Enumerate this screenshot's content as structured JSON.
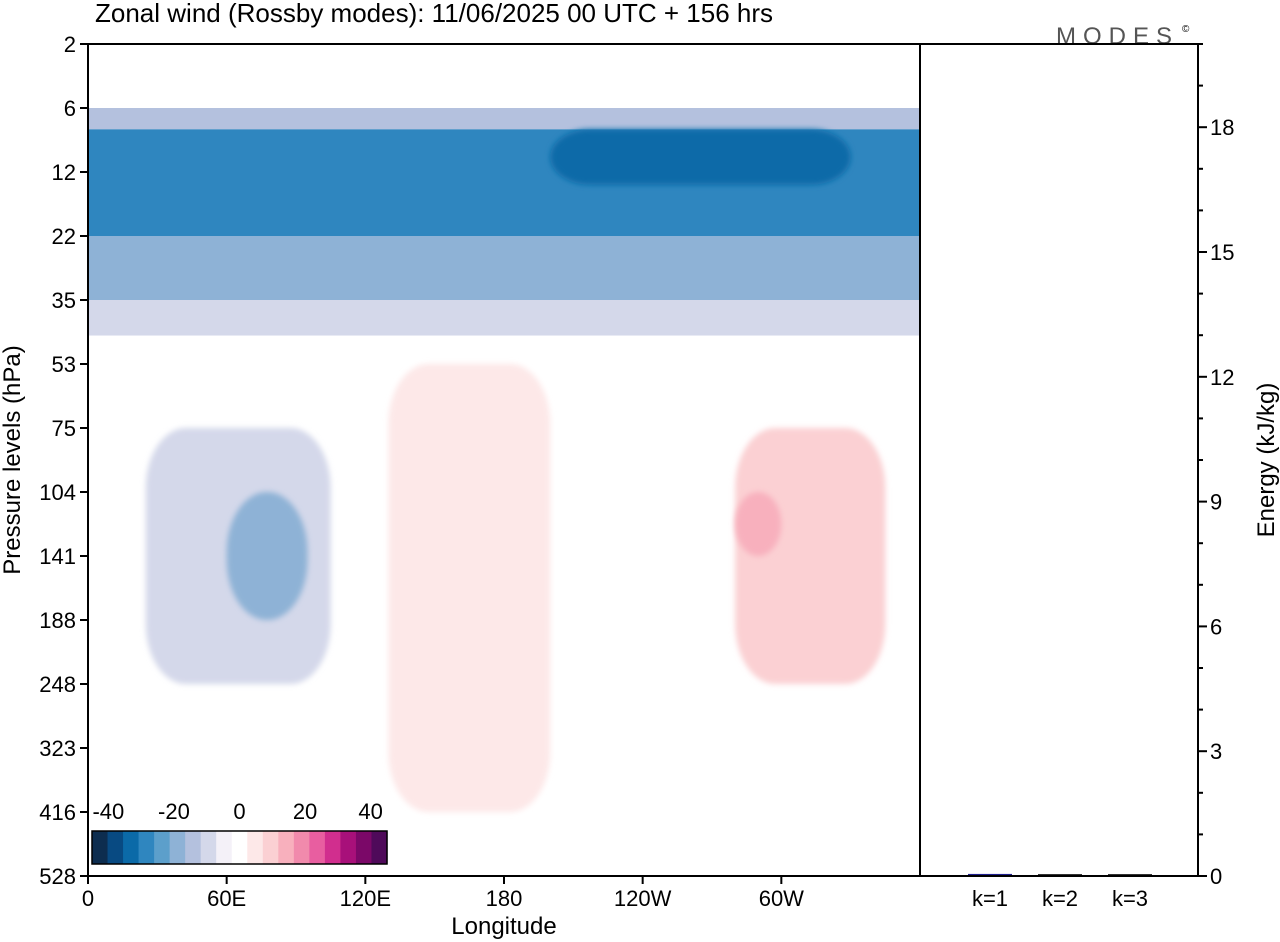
{
  "title": "Zonal wind (Rossby modes):  11/06/2025  00 UTC  + 156 hrs",
  "logo": {
    "text": "MODES",
    "mark": "©"
  },
  "chart_data": [
    {
      "type": "heatmap",
      "title": "Zonal wind (Rossby modes):  11/06/2025  00 UTC  + 156 hrs",
      "xlabel": "Longitude",
      "ylabel": "Pressure levels (hPa)",
      "x_ticks": [
        "0",
        "60E",
        "120E",
        "180",
        "120W",
        "60W"
      ],
      "x_tick_lon": [
        0,
        60,
        120,
        180,
        240,
        300
      ],
      "xlim": [
        0,
        360
      ],
      "y_ticks": [
        "2",
        "6",
        "12",
        "22",
        "35",
        "53",
        "75",
        "104",
        "141",
        "188",
        "248",
        "323",
        "416",
        "528"
      ],
      "y_scale": "categorical-levels",
      "colorbar": {
        "ticks": [
          "-40",
          "-20",
          "0",
          "20",
          "40"
        ],
        "range": [
          -45,
          45
        ],
        "colors": [
          "#0d2d4f",
          "#084a82",
          "#0b6aa8",
          "#2f86bf",
          "#5c9fcb",
          "#8eb2d6",
          "#b4c1de",
          "#d4d8ea",
          "#f4f1f8",
          "#ffffff",
          "#fde8e8",
          "#fbd0d3",
          "#f8b0bd",
          "#f18aac",
          "#e85ea0",
          "#d12e8e",
          "#a8107a",
          "#7b0868",
          "#4f0a5a"
        ]
      },
      "regions": [
        {
          "lon": [
            0,
            360
          ],
          "p": [
            "2",
            "6"
          ],
          "value": 0
        },
        {
          "lon": [
            0,
            360
          ],
          "p": [
            "6",
            "8"
          ],
          "value": -15
        },
        {
          "lon": [
            0,
            360
          ],
          "p": [
            "8",
            "22"
          ],
          "value": -30
        },
        {
          "lon": [
            200,
            330
          ],
          "p": [
            "8",
            "14"
          ],
          "value": -35
        },
        {
          "lon": [
            0,
            360
          ],
          "p": [
            "22",
            "35"
          ],
          "value": -20
        },
        {
          "lon": [
            0,
            360
          ],
          "p": [
            "35",
            "45"
          ],
          "value": -10
        },
        {
          "lon": [
            25,
            105
          ],
          "p": [
            "75",
            "248"
          ],
          "value": -10
        },
        {
          "lon": [
            60,
            95
          ],
          "p": [
            "104",
            "188"
          ],
          "value": -20
        },
        {
          "lon": [
            130,
            200
          ],
          "p": [
            "53",
            "416"
          ],
          "value": 5
        },
        {
          "lon": [
            280,
            345
          ],
          "p": [
            "75",
            "248"
          ],
          "value": 10
        },
        {
          "lon": [
            280,
            300
          ],
          "p": [
            "104",
            "141"
          ],
          "value": 15
        }
      ]
    },
    {
      "type": "bar",
      "ylabel": "Energy (kJ/kg)",
      "categories": [
        "k=1",
        "k=2",
        "k=3"
      ],
      "values": [
        0.05,
        0.03,
        0.01
      ],
      "ylim": [
        0,
        20
      ],
      "y_ticks": [
        "0",
        "3",
        "6",
        "9",
        "12",
        "15",
        "18"
      ]
    }
  ]
}
